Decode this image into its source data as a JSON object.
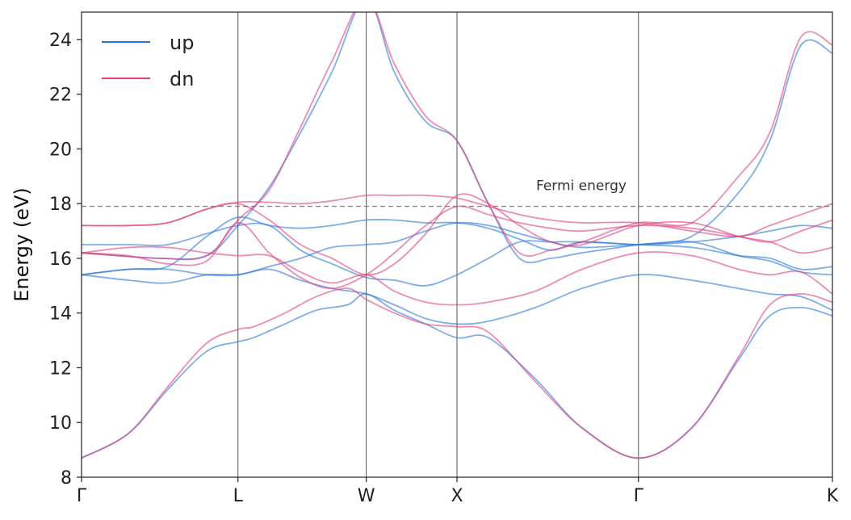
{
  "chart_data": {
    "type": "line",
    "title": "",
    "xlabel": "",
    "ylabel": "Energy (eV)",
    "ylim": [
      8,
      25
    ],
    "xlim": [
      0,
      4.8
    ],
    "yticks": [
      8,
      10,
      12,
      14,
      16,
      18,
      20,
      22,
      24
    ],
    "kpoints": [
      {
        "label": "Γ",
        "x": 0.0
      },
      {
        "label": "L",
        "x": 1.0
      },
      {
        "label": "W",
        "x": 1.82
      },
      {
        "label": "X",
        "x": 2.4
      },
      {
        "label": "Γ",
        "x": 3.56
      },
      {
        "label": "K",
        "x": 4.8
      }
    ],
    "fermi_energy": 17.9,
    "annotation": "Fermi energy",
    "legend": {
      "placement": "top-left",
      "entries": [
        "up",
        "dn"
      ]
    },
    "colors": {
      "up": "#2a76d8",
      "dn": "#e1407e",
      "fermi": "#888888",
      "vline": "#555555"
    },
    "series": [
      {
        "name": "up",
        "bands": [
          {
            "x": [
              0,
              0.3,
              0.55,
              0.8,
              1.0,
              1.1,
              1.3,
              1.5,
              1.7,
              1.82,
              2.0,
              2.2,
              2.4,
              2.6,
              2.9,
              3.2,
              3.56,
              3.9,
              4.2,
              4.4,
              4.6,
              4.8
            ],
            "y": [
              8.7,
              9.6,
              11.2,
              12.6,
              12.95,
              13.1,
              13.6,
              14.1,
              14.3,
              14.7,
              14.1,
              13.6,
              13.1,
              13.1,
              11.6,
              9.8,
              8.7,
              9.8,
              12.3,
              13.9,
              14.2,
              13.9
            ]
          },
          {
            "x": [
              0,
              0.3,
              0.55,
              0.8,
              1.0,
              1.2,
              1.4,
              1.6,
              1.82,
              2.0,
              2.2,
              2.4,
              2.6,
              2.9,
              3.2,
              3.56,
              3.9,
              4.2,
              4.4,
              4.6,
              4.8
            ],
            "y": [
              15.4,
              15.2,
              15.1,
              15.4,
              15.4,
              15.6,
              15.2,
              14.9,
              14.7,
              14.3,
              13.8,
              13.6,
              13.7,
              14.2,
              14.9,
              15.4,
              15.2,
              14.9,
              14.7,
              14.6,
              14.1
            ]
          },
          {
            "x": [
              0,
              0.3,
              0.55,
              0.8,
              1.0,
              1.2,
              1.4,
              1.6,
              1.82,
              2.0,
              2.2,
              2.4,
              2.6,
              2.8,
              3.0,
              3.2,
              3.56,
              3.9,
              4.2,
              4.4,
              4.6,
              4.8
            ],
            "y": [
              16.5,
              16.5,
              16.5,
              16.9,
              17.2,
              17.2,
              16.3,
              15.8,
              15.3,
              15.2,
              15.0,
              15.4,
              16.0,
              16.6,
              16.6,
              16.6,
              16.5,
              16.4,
              16.1,
              16.0,
              15.6,
              15.7
            ]
          },
          {
            "x": [
              0,
              0.3,
              0.55,
              0.8,
              1.0,
              1.2,
              1.4,
              1.6,
              1.82,
              2.0,
              2.2,
              2.4,
              2.6,
              2.8,
              3.0,
              3.2,
              3.56,
              3.9,
              4.2,
              4.4,
              4.6,
              4.8
            ],
            "y": [
              15.4,
              15.6,
              15.6,
              15.4,
              15.4,
              15.7,
              16.0,
              16.4,
              16.5,
              16.6,
              17.0,
              17.3,
              17.2,
              16.9,
              16.6,
              16.4,
              16.5,
              16.6,
              16.1,
              15.9,
              15.5,
              15.4
            ]
          },
          {
            "x": [
              0,
              0.3,
              0.55,
              0.8,
              1.0,
              1.2,
              1.4,
              1.6,
              1.82,
              2.0,
              2.2,
              2.4,
              2.6,
              2.8,
              3.0,
              3.2,
              3.56,
              3.9,
              4.2,
              4.4,
              4.6,
              4.8
            ],
            "y": [
              15.4,
              15.6,
              15.7,
              16.8,
              17.5,
              17.2,
              17.1,
              17.2,
              17.4,
              17.4,
              17.3,
              17.3,
              17.1,
              16.7,
              16.3,
              16.6,
              16.5,
              16.6,
              16.8,
              17.0,
              17.2,
              17.1
            ]
          },
          {
            "x": [
              0,
              0.5,
              0.8,
              1.0,
              1.2,
              1.4,
              1.6,
              1.82,
              2.0,
              2.2,
              2.4,
              2.6,
              2.8,
              3.0,
              3.2,
              3.56,
              3.9,
              4.2,
              4.4,
              4.6,
              4.8
            ],
            "y": [
              16.2,
              16.0,
              16.1,
              17.2,
              18.6,
              20.6,
              22.8,
              25.5,
              22.8,
              21.0,
              20.3,
              18.0,
              16.0,
              16.0,
              16.2,
              16.5,
              16.8,
              18.4,
              20.3,
              23.8,
              23.5
            ]
          }
        ]
      },
      {
        "name": "dn",
        "bands": [
          {
            "x": [
              0,
              0.3,
              0.55,
              0.8,
              1.0,
              1.1,
              1.3,
              1.5,
              1.7,
              1.82,
              2.0,
              2.2,
              2.4,
              2.6,
              2.9,
              3.2,
              3.56,
              3.9,
              4.2,
              4.4,
              4.6,
              4.8
            ],
            "y": [
              8.7,
              9.6,
              11.3,
              12.9,
              13.4,
              13.5,
              14.0,
              14.6,
              14.9,
              14.5,
              14.0,
              13.6,
              13.5,
              13.3,
              11.5,
              9.8,
              8.7,
              9.8,
              12.4,
              14.3,
              14.7,
              14.4
            ]
          },
          {
            "x": [
              0,
              0.3,
              0.55,
              0.8,
              1.0,
              1.2,
              1.4,
              1.6,
              1.82,
              2.0,
              2.2,
              2.4,
              2.6,
              2.9,
              3.2,
              3.56,
              3.9,
              4.2,
              4.4,
              4.6,
              4.8
            ],
            "y": [
              16.2,
              16.4,
              16.4,
              16.2,
              16.1,
              16.1,
              15.5,
              15.1,
              15.4,
              14.8,
              14.4,
              14.3,
              14.4,
              14.8,
              15.6,
              16.2,
              16.1,
              15.6,
              15.4,
              15.5,
              14.7
            ]
          },
          {
            "x": [
              0,
              0.3,
              0.55,
              0.8,
              1.0,
              1.2,
              1.4,
              1.6,
              1.82,
              2.0,
              2.2,
              2.4,
              2.6,
              2.8,
              3.0,
              3.2,
              3.56,
              3.9,
              4.2,
              4.4,
              4.6,
              4.8
            ],
            "y": [
              17.2,
              17.2,
              17.3,
              17.8,
              18.0,
              17.4,
              16.5,
              16.0,
              15.4,
              15.8,
              16.9,
              18.3,
              18.0,
              17.2,
              16.6,
              16.5,
              17.2,
              17.3,
              16.8,
              16.6,
              16.2,
              16.4
            ]
          },
          {
            "x": [
              0,
              0.3,
              0.55,
              0.8,
              1.0,
              1.2,
              1.4,
              1.6,
              1.82,
              2.0,
              2.2,
              2.4,
              2.6,
              2.8,
              3.0,
              3.2,
              3.56,
              3.9,
              4.2,
              4.4,
              4.6,
              4.8
            ],
            "y": [
              16.2,
              16.1,
              15.8,
              15.9,
              17.3,
              16.2,
              15.3,
              14.9,
              15.4,
              16.2,
              17.2,
              17.9,
              17.6,
              17.3,
              17.1,
              17.0,
              17.2,
              17.1,
              16.8,
              16.6,
              17.0,
              17.4
            ]
          },
          {
            "x": [
              0,
              0.3,
              0.55,
              0.8,
              1.0,
              1.2,
              1.4,
              1.6,
              1.82,
              2.0,
              2.2,
              2.4,
              2.6,
              2.8,
              3.0,
              3.2,
              3.56,
              3.9,
              4.2,
              4.4,
              4.6,
              4.8
            ],
            "y": [
              17.2,
              17.2,
              17.3,
              17.8,
              18.05,
              18.05,
              18.0,
              18.1,
              18.3,
              18.3,
              18.3,
              18.2,
              17.9,
              17.6,
              17.4,
              17.3,
              17.3,
              17.0,
              16.8,
              17.2,
              17.6,
              18.0
            ]
          },
          {
            "x": [
              0,
              0.5,
              0.8,
              1.0,
              1.2,
              1.4,
              1.6,
              1.82,
              2.0,
              2.2,
              2.4,
              2.6,
              2.8,
              3.0,
              3.2,
              3.56,
              3.9,
              4.2,
              4.4,
              4.6,
              4.8
            ],
            "y": [
              16.2,
              16.0,
              16.1,
              17.4,
              18.5,
              20.8,
              23.2,
              25.5,
              23.1,
              21.2,
              20.3,
              18.0,
              16.2,
              16.3,
              16.6,
              17.3,
              17.3,
              19.0,
              20.6,
              24.1,
              23.8
            ]
          }
        ]
      }
    ]
  }
}
